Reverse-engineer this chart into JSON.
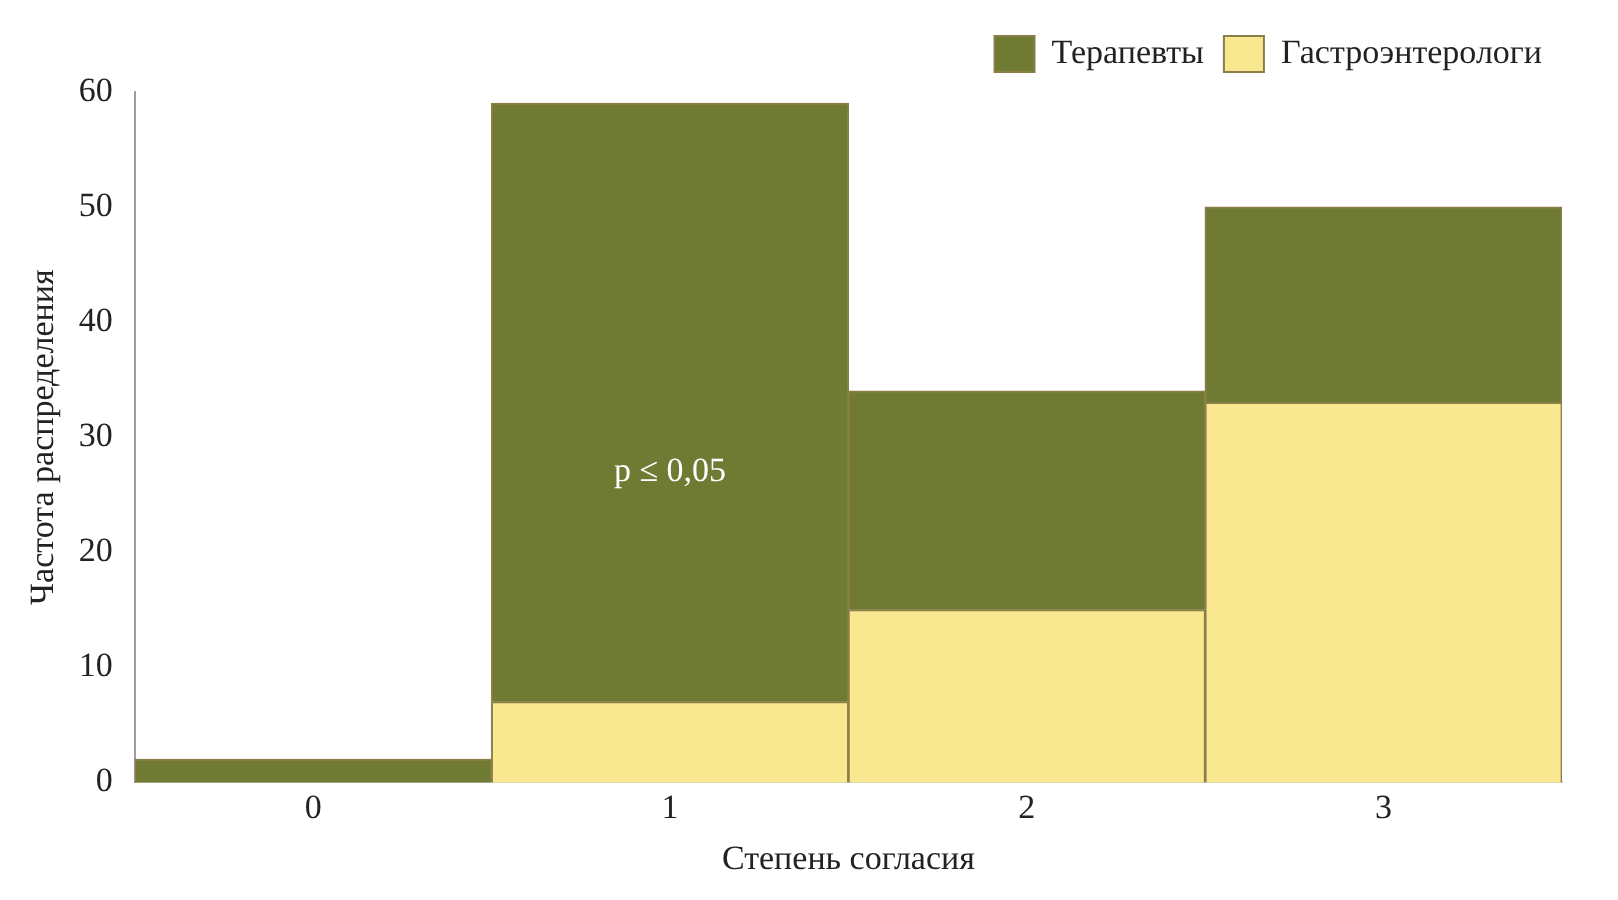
{
  "chart_data": {
    "type": "bar",
    "stacked": true,
    "xlabel": "Степень согласия",
    "ylabel": "Частота распределения",
    "categories": [
      "0",
      "1",
      "2",
      "3"
    ],
    "series": [
      {
        "name": "Гастроэнтерологи",
        "color": "#f9e88f",
        "values": [
          0,
          7,
          15,
          33
        ]
      },
      {
        "name": "Терапевты",
        "color": "#6f7a32",
        "values": [
          2,
          52,
          19,
          17
        ]
      }
    ],
    "ylim": [
      0,
      60
    ],
    "yticks": [
      0,
      10,
      20,
      30,
      40,
      50,
      60
    ],
    "grid": false,
    "legend": "top right",
    "annotations": [
      "p ≤ 0,05"
    ]
  }
}
